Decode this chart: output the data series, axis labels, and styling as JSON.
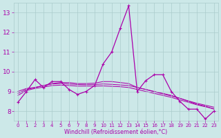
{
  "xlabel": "Windchill (Refroidissement éolien,°C)",
  "background_color": "#cce8e8",
  "grid_color": "#aacccc",
  "line_color": "#aa00aa",
  "hours": [
    0,
    1,
    2,
    3,
    4,
    5,
    6,
    7,
    8,
    9,
    10,
    11,
    12,
    13,
    14,
    15,
    16,
    17,
    18,
    19,
    20,
    21,
    22,
    23
  ],
  "windchill": [
    8.45,
    9.0,
    9.6,
    9.2,
    9.5,
    9.5,
    9.1,
    8.85,
    9.0,
    9.3,
    10.4,
    11.0,
    12.2,
    13.35,
    9.0,
    9.55,
    9.85,
    9.85,
    9.0,
    8.5,
    8.1,
    8.1,
    7.6,
    8.0
  ],
  "line2": [
    9.0,
    9.15,
    9.2,
    9.3,
    9.4,
    9.45,
    9.45,
    9.4,
    9.4,
    9.42,
    9.5,
    9.5,
    9.45,
    9.4,
    9.2,
    9.1,
    9.0,
    8.9,
    8.8,
    8.65,
    8.5,
    8.35,
    8.25,
    8.1
  ],
  "line3": [
    8.9,
    9.1,
    9.2,
    9.3,
    9.38,
    9.4,
    9.38,
    9.35,
    9.34,
    9.35,
    9.38,
    9.36,
    9.33,
    9.3,
    9.2,
    9.1,
    8.98,
    8.88,
    8.77,
    8.65,
    8.52,
    8.4,
    8.3,
    8.2
  ],
  "line4": [
    8.8,
    9.05,
    9.15,
    9.22,
    9.3,
    9.32,
    9.3,
    9.27,
    9.27,
    9.27,
    9.28,
    9.26,
    9.24,
    9.2,
    9.1,
    9.0,
    8.9,
    8.8,
    8.7,
    8.57,
    8.45,
    8.32,
    8.22,
    8.12
  ],
  "ylim": [
    7.5,
    13.5
  ],
  "xlim": [
    -0.5,
    23.5
  ],
  "yticks": [
    8,
    9,
    10,
    11,
    12,
    13
  ],
  "xticks": [
    0,
    1,
    2,
    3,
    4,
    5,
    6,
    7,
    8,
    9,
    10,
    11,
    12,
    13,
    14,
    15,
    16,
    17,
    18,
    19,
    20,
    21,
    22,
    23
  ]
}
